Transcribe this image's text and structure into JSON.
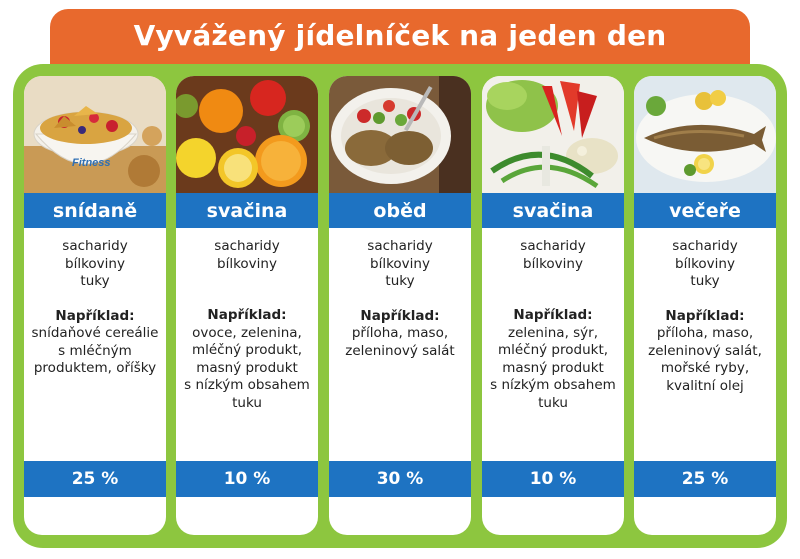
{
  "title": "Vyvážený jídelníček na jeden den",
  "colors": {
    "header_orange": "#e8692d",
    "frame_green": "#8dc63f",
    "band_blue": "#1e73c2"
  },
  "example_label": "Například:",
  "meals": [
    {
      "name": "snídaně",
      "photo": "cereal-bowl-photo",
      "photo_text": "Fitness",
      "nutrients": [
        "sacharidy",
        "bílkoviny",
        "tuky"
      ],
      "example": "snídaňové cereálie\ns mléčným\nproduktem, oříšky",
      "percent": "25 %"
    },
    {
      "name": "svačina",
      "photo": "fruit-photo",
      "nutrients": [
        "sacharidy",
        "bílkoviny"
      ],
      "example": "ovoce, zelenina,\nmléčný produkt,\nmasný produkt\ns nízkým obsahem\ntuku",
      "percent": "10 %"
    },
    {
      "name": "oběd",
      "photo": "lunch-plate-photo",
      "nutrients": [
        "sacharidy",
        "bílkoviny",
        "tuky"
      ],
      "example": "příloha, maso,\nzeleninový salát",
      "percent": "30 %"
    },
    {
      "name": "svačina",
      "photo": "vegetable-photo",
      "nutrients": [
        "sacharidy",
        "bílkoviny"
      ],
      "example": "zelenina, sýr,\nmléčný produkt,\nmasný produkt\ns nízkým obsahem\ntuku",
      "percent": "10 %"
    },
    {
      "name": "večeře",
      "photo": "fish-plate-photo",
      "nutrients": [
        "sacharidy",
        "bílkoviny",
        "tuky"
      ],
      "example": "příloha, maso,\nzeleninový salát,\nmořské ryby,\nkvalitní olej",
      "percent": "25 %"
    }
  ]
}
